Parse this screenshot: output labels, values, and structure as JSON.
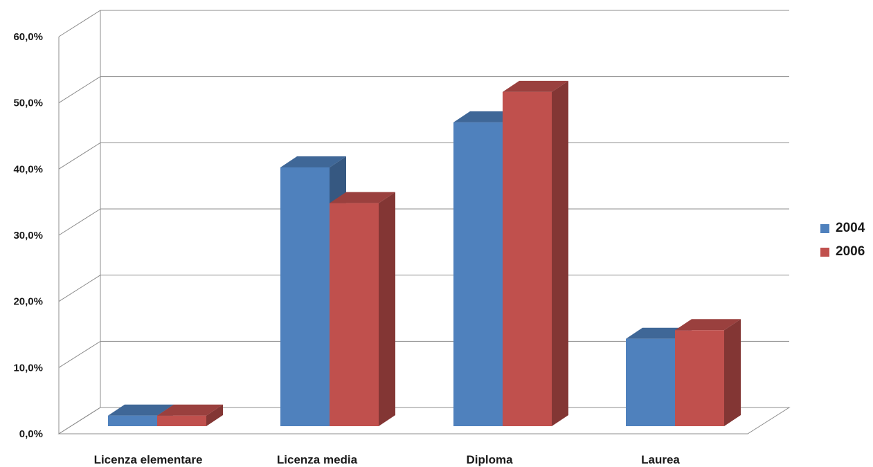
{
  "chart_data": {
    "type": "bar",
    "title": "",
    "xlabel": "",
    "ylabel": "",
    "categories": [
      "Licenza elementare",
      "Licenza media",
      "Diploma",
      "Laurea"
    ],
    "series": [
      {
        "name": "2004",
        "values": [
          1.6,
          39.1,
          45.9,
          13.2
        ],
        "color": "#4F81BD"
      },
      {
        "name": "2006",
        "values": [
          1.6,
          33.7,
          50.5,
          14.5
        ],
        "color": "#C0504D"
      }
    ],
    "ylim": [
      0,
      60
    ],
    "yticks": [
      0,
      10,
      20,
      30,
      40,
      50,
      60
    ],
    "ytick_labels": [
      "0,0%",
      "10,0%",
      "20,0%",
      "30,0%",
      "40,0%",
      "50,0%",
      "60,0%"
    ],
    "grid": true,
    "legend_position": "right",
    "style": "3d-clustered-column"
  }
}
